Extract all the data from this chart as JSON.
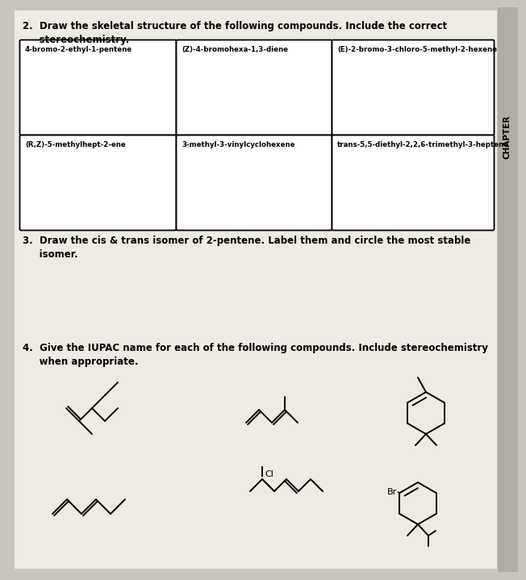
{
  "bg_color": "#c8c5bc",
  "page_color": "#eeeae4",
  "black": "#000000",
  "white": "#ffffff",
  "section2": "2.  Draw the skeletal structure of the following compounds. Include the correct\n     stereochemistry.",
  "section3": "3.  Draw the cis & trans isomer of 2-pentene. Label them and circle the most stable\n     isomer.",
  "section4": "4.  Give the IUPAC name for each of the following compounds. Include stereochemistry\n     when appropriate.",
  "box_row1": [
    "4-bromo-2-ethyl-1-pentene",
    "(Z)-4-bromohexa-1,3-diene",
    "(E)-2-bromo-3-chloro-5-methyl-2-hexene"
  ],
  "box_row2": [
    "(R,Z)-5-methylhept-2-ene",
    "3-methyl-3-vinylcyclohexene",
    "trans-5,5-diethyl-2,2,6-trimethyl-3-heptene"
  ],
  "sidebar_label": "CHAPTER",
  "lw": 1.4
}
